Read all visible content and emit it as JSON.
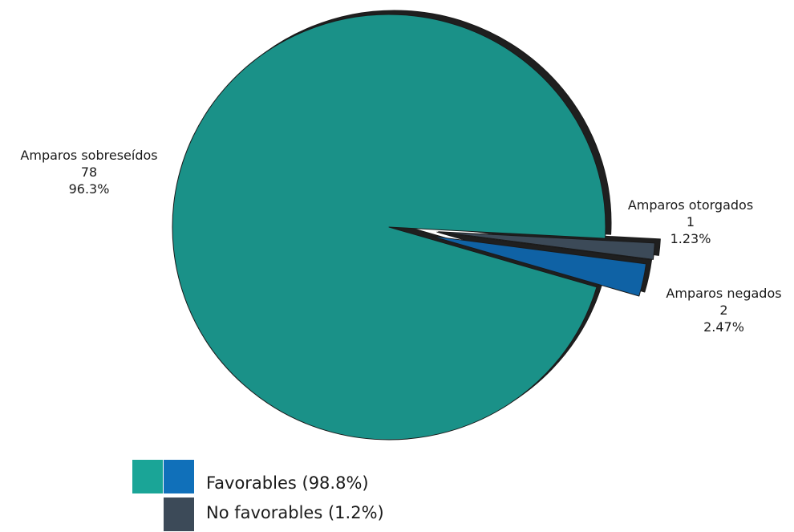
{
  "chart_data": {
    "type": "pie",
    "slices": [
      {
        "label": "Amparos sobreseídos",
        "count": "78",
        "percent_text": "96.3%",
        "value": 78,
        "color": "#1a9188"
      },
      {
        "label": "Amparos negados",
        "count": "2",
        "percent_text": "2.47%",
        "value": 2,
        "color": "#0f62a5"
      },
      {
        "label": "Amparos otorgados",
        "count": "1",
        "percent_text": "1.23%",
        "value": 1,
        "color": "#3c4a58"
      }
    ],
    "legend": [
      {
        "label": "Favorables (98.8%)",
        "colors": [
          "#1aa597",
          "#1070ba"
        ]
      },
      {
        "label": "No favorables (1.2%)",
        "colors": [
          "#3c4a58"
        ]
      }
    ]
  }
}
